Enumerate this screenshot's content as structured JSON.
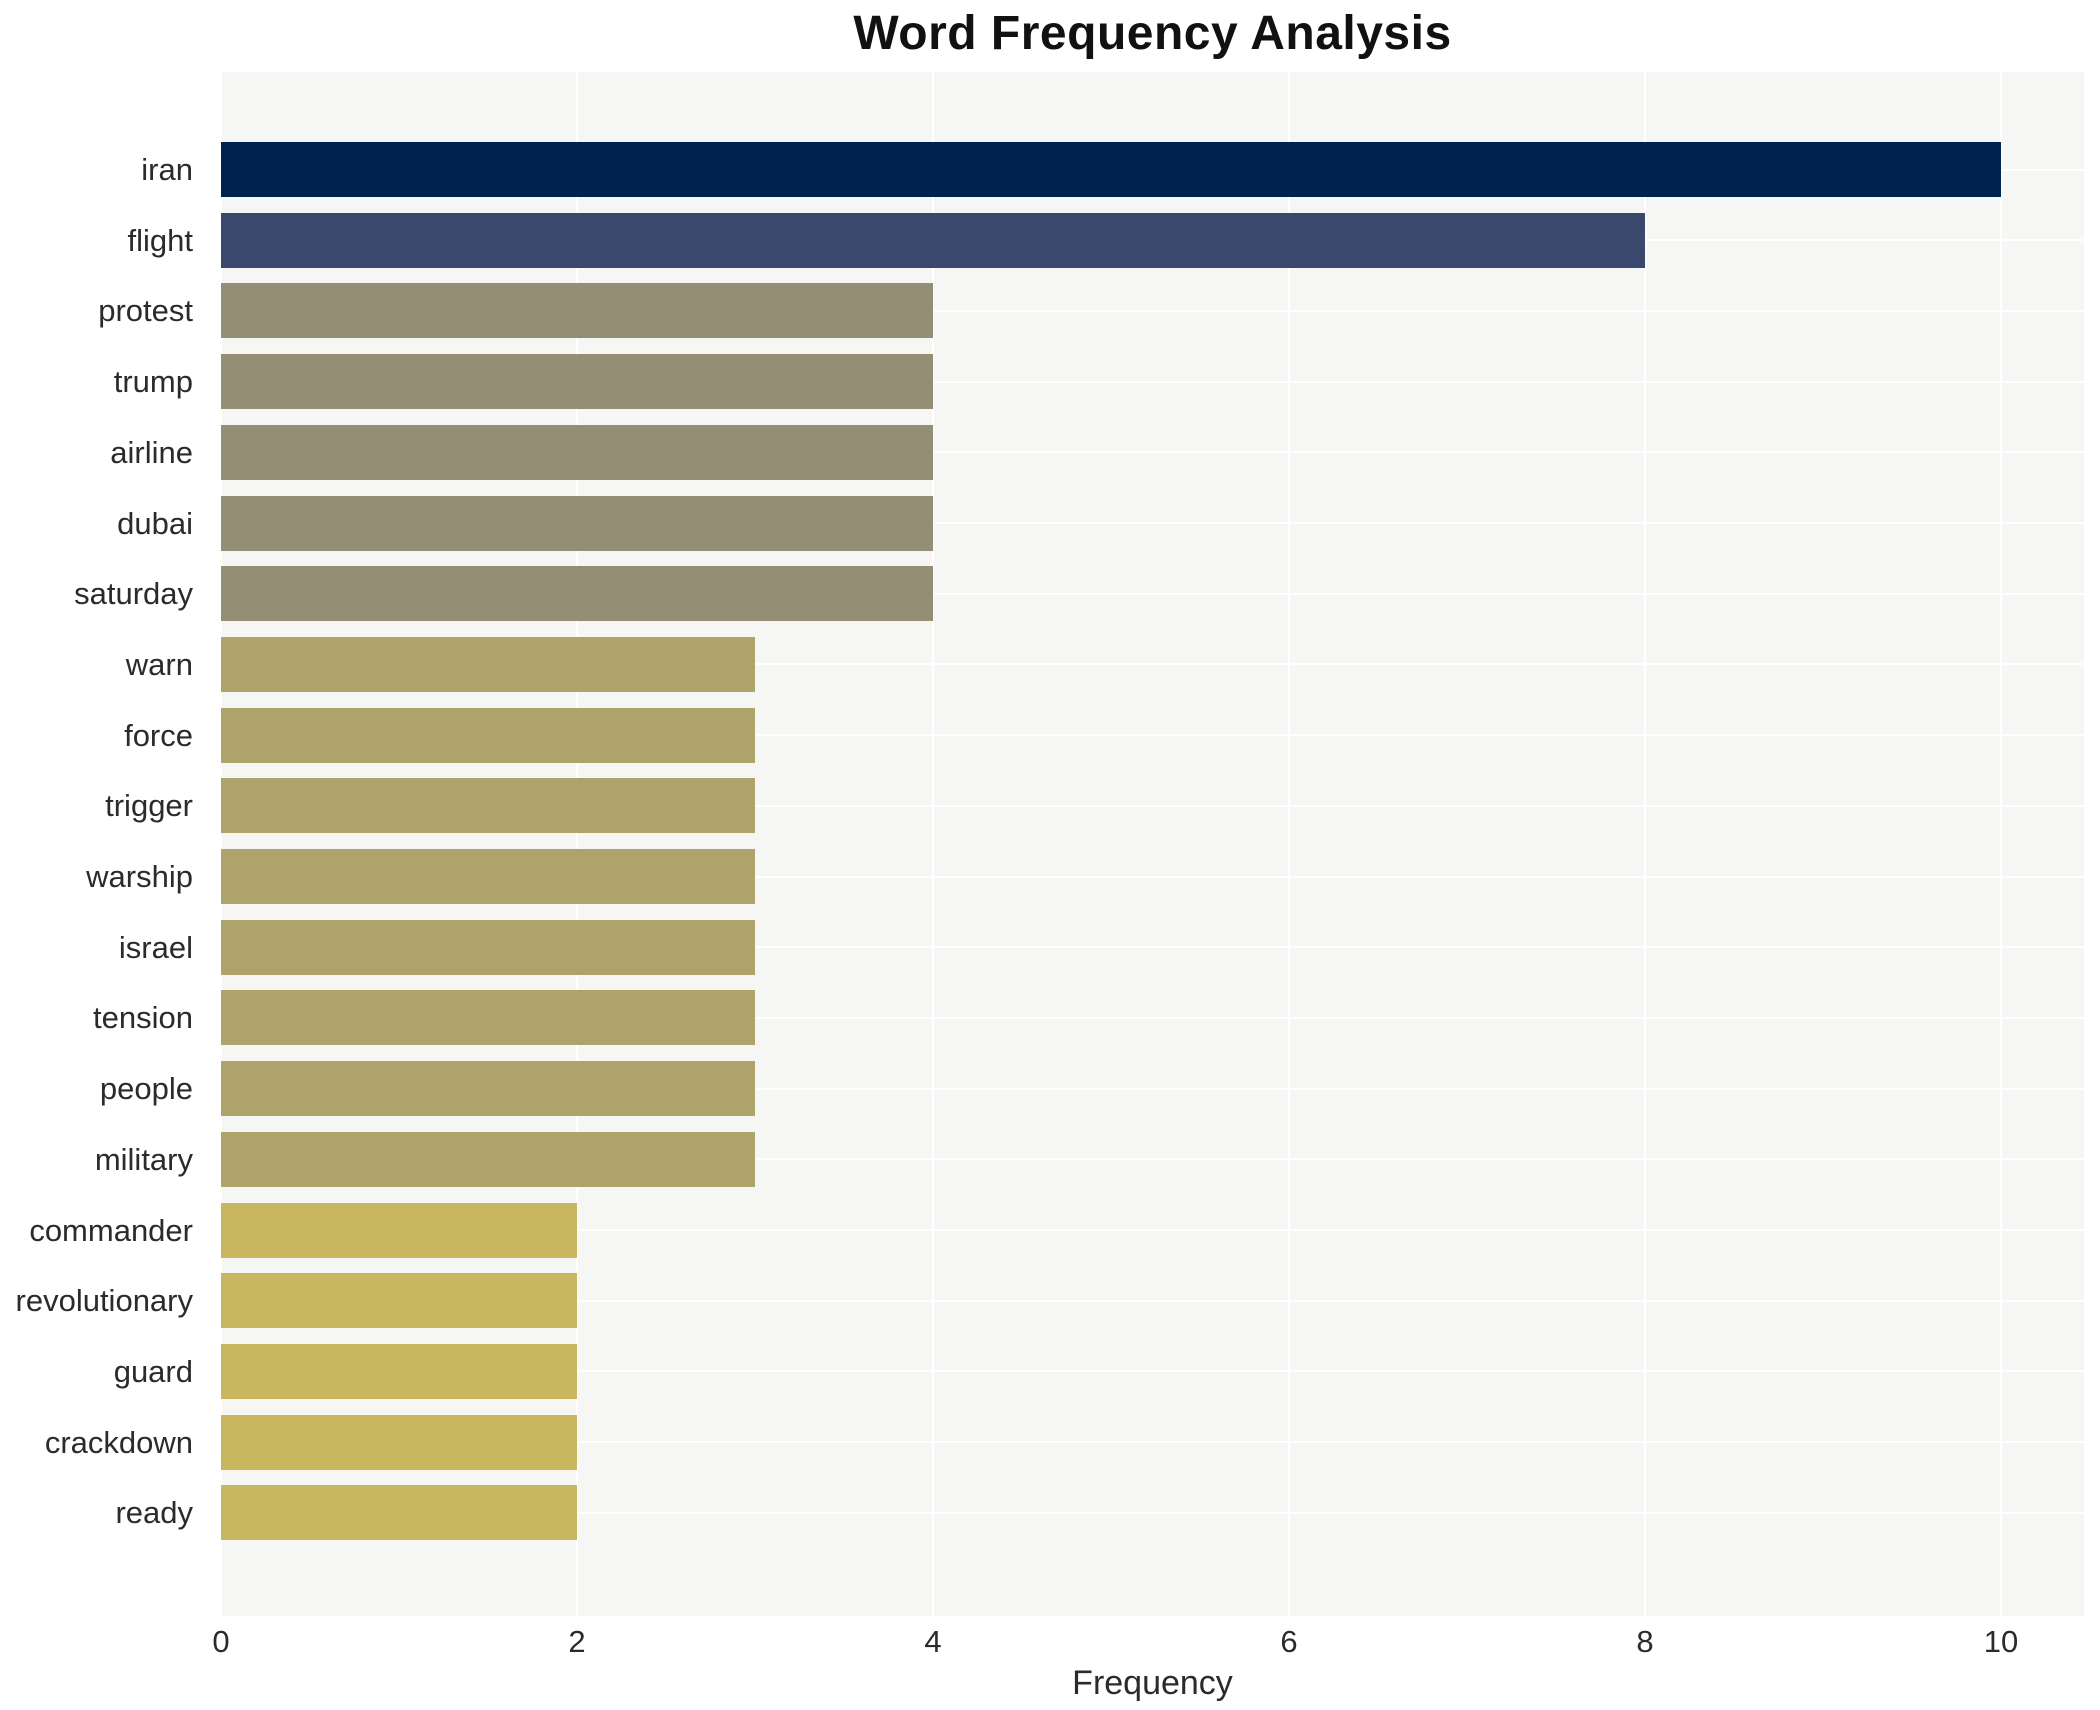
{
  "chart_data": {
    "type": "bar",
    "orientation": "horizontal",
    "title": "Word Frequency Analysis",
    "xlabel": "Frequency",
    "ylabel": "",
    "xlim": [
      0,
      10.47
    ],
    "xticks": [
      0,
      2,
      4,
      6,
      8,
      10
    ],
    "grid": true,
    "legend": false,
    "categories": [
      "iran",
      "flight",
      "protest",
      "trump",
      "airline",
      "dubai",
      "saturday",
      "warn",
      "force",
      "trigger",
      "warship",
      "israel",
      "tension",
      "people",
      "military",
      "commander",
      "revolutionary",
      "guard",
      "crackdown",
      "ready"
    ],
    "values": [
      10,
      8,
      4,
      4,
      4,
      4,
      4,
      3,
      3,
      3,
      3,
      3,
      3,
      3,
      3,
      2,
      2,
      2,
      2,
      2
    ],
    "bar_colors": [
      "#00224e",
      "#39486c",
      "#948e75",
      "#948e75",
      "#948e75",
      "#948e75",
      "#948e75",
      "#aea36c",
      "#aea36c",
      "#aea36c",
      "#aea36c",
      "#aea36c",
      "#aea36c",
      "#aea36c",
      "#aea36c",
      "#c8b75f",
      "#c8b75f",
      "#c8b75f",
      "#c8b75f",
      "#c8b75f"
    ]
  },
  "style": {
    "plot_background": "#f6f6f4",
    "grid_color": "#ffffff",
    "text_color": "#2b2b2b",
    "title_color": "#111111",
    "value_color_map": {
      "10": "#00224e",
      "8": "#39486c",
      "4": "#948e75",
      "3": "#aea36c",
      "2": "#c8b75f"
    }
  }
}
